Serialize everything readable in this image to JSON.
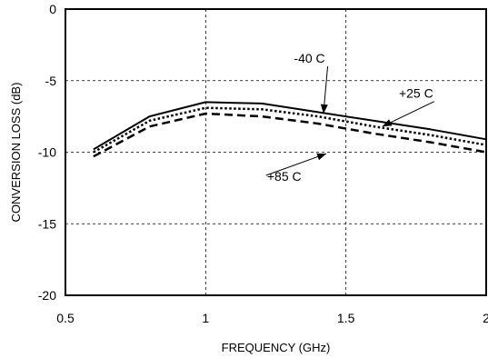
{
  "chart_data": {
    "type": "line",
    "title": "",
    "xlabel": "FREQUENCY (GHz)",
    "ylabel": "CONVERSION LOSS (dB)",
    "xlim": [
      0.5,
      2
    ],
    "ylim": [
      -20,
      0
    ],
    "xticks": [
      0.5,
      1,
      1.5,
      2
    ],
    "yticks": [
      -20,
      -15,
      -10,
      -5,
      0
    ],
    "xtick_labels": [
      "0.5",
      "1",
      "1.5",
      "2"
    ],
    "ytick_labels": [
      "-20",
      "-15",
      "-10",
      "-5",
      "0"
    ],
    "grid": true,
    "grid_style": "dashed",
    "series": [
      {
        "name": "-40 C",
        "style": "solid",
        "color": "#000000",
        "points": [
          [
            0.6,
            -9.8
          ],
          [
            0.8,
            -7.5
          ],
          [
            1.0,
            -6.5
          ],
          [
            1.2,
            -6.6
          ],
          [
            1.4,
            -7.2
          ],
          [
            1.6,
            -7.8
          ],
          [
            1.8,
            -8.4
          ],
          [
            2.0,
            -9.1
          ]
        ]
      },
      {
        "name": "+25 C",
        "style": "dotted",
        "color": "#000000",
        "points": [
          [
            0.6,
            -10.0
          ],
          [
            0.8,
            -7.8
          ],
          [
            1.0,
            -6.9
          ],
          [
            1.2,
            -7.0
          ],
          [
            1.4,
            -7.5
          ],
          [
            1.6,
            -8.2
          ],
          [
            1.8,
            -8.8
          ],
          [
            2.0,
            -9.5
          ]
        ]
      },
      {
        "name": "+85 C",
        "style": "dashed",
        "color": "#000000",
        "points": [
          [
            0.6,
            -10.3
          ],
          [
            0.8,
            -8.2
          ],
          [
            1.0,
            -7.3
          ],
          [
            1.2,
            -7.5
          ],
          [
            1.4,
            -8.0
          ],
          [
            1.6,
            -8.7
          ],
          [
            1.8,
            -9.3
          ],
          [
            2.0,
            -10.0
          ]
        ]
      }
    ],
    "annotations": [
      {
        "text": "-40 C",
        "series": "-40 C",
        "text_at": [
          1.37,
          -3.75
        ],
        "arrow_to": [
          1.42,
          -7.3
        ]
      },
      {
        "text": "+25 C",
        "series": "+25 C",
        "text_at": [
          1.75,
          -6.2
        ],
        "arrow_to": [
          1.63,
          -8.2
        ]
      },
      {
        "text": "+85 C",
        "series": "+85 C",
        "text_at": [
          1.28,
          -12.0
        ],
        "arrow_to": [
          1.43,
          -10.1
        ]
      }
    ]
  }
}
